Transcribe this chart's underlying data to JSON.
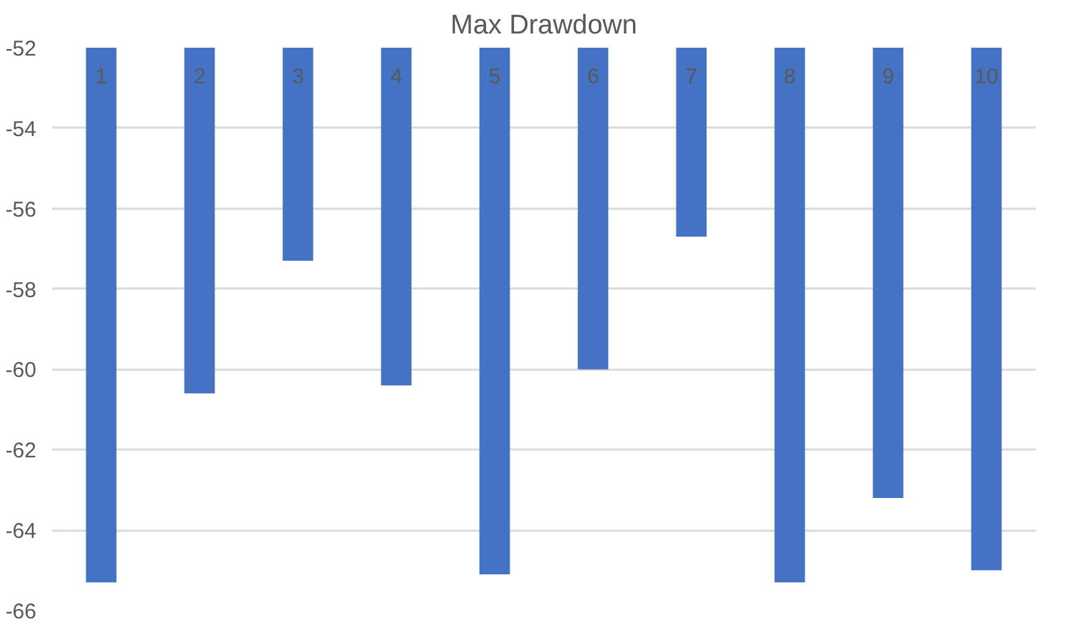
{
  "chart_data": {
    "type": "bar",
    "title": "Max Drawdown",
    "categories": [
      "1",
      "2",
      "3",
      "4",
      "5",
      "6",
      "7",
      "8",
      "9",
      "10"
    ],
    "values": [
      -65.3,
      -60.6,
      -57.3,
      -60.4,
      -65.1,
      -60.0,
      -56.7,
      -65.3,
      -63.2,
      -65.0
    ],
    "color": "#4472c4",
    "ylim": [
      -66,
      -52
    ],
    "yticks": [
      -66,
      -64,
      -62,
      -60,
      -58,
      -56,
      -54,
      -52
    ],
    "grid": "y"
  }
}
